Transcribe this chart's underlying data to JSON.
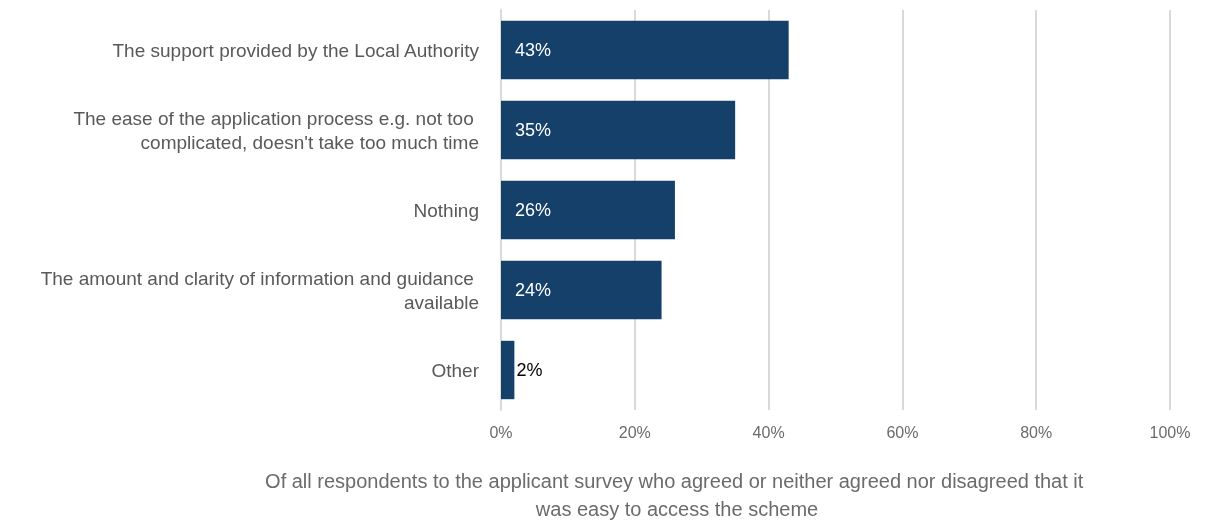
{
  "chart_data": {
    "type": "bar",
    "orientation": "horizontal",
    "categories": [
      "The support provided by the Local Authority",
      "The ease of the application process e.g. not too complicated, doesn't take too much time",
      "Nothing",
      "The amount and clarity of information and guidance available",
      "Other"
    ],
    "values": [
      43,
      35,
      26,
      24,
      2
    ],
    "value_labels": [
      "43%",
      "35%",
      "26%",
      "24%",
      "2%"
    ],
    "color": "#154069",
    "xlabel": "Of all respondents to the applicant survey who agreed or neither agreed nor disagreed that it was easy to access the scheme",
    "xlim": [
      0,
      100
    ],
    "xticks": [
      {
        "value": 0,
        "label": "0%"
      },
      {
        "value": 20,
        "label": "20%"
      },
      {
        "value": 40,
        "label": "40%"
      },
      {
        "value": 60,
        "label": "60%"
      },
      {
        "value": 80,
        "label": "80%"
      },
      {
        "value": 100,
        "label": "100%"
      }
    ],
    "grid": "x"
  }
}
